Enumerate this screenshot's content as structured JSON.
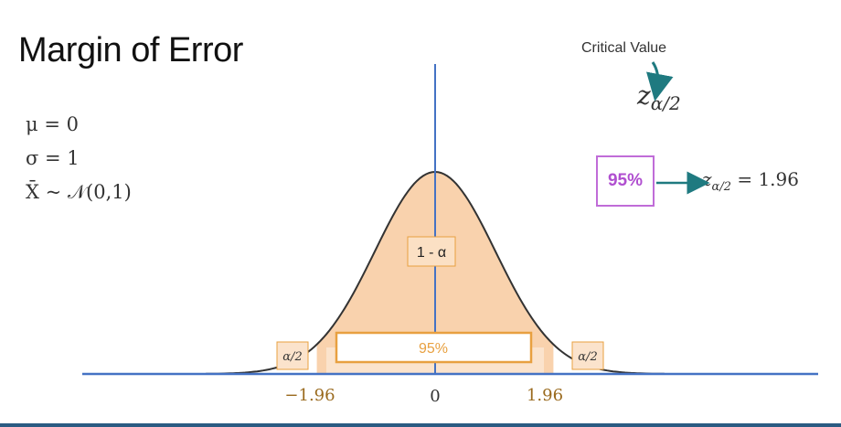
{
  "title": "Margin of Error",
  "params": {
    "mu": "μ = 0",
    "sigma": "σ = 1",
    "dist": "X̄ ~ 𝒩(0,1)"
  },
  "critical": {
    "label": "Critical Value",
    "symbol_main": "z",
    "symbol_sub": "α/2"
  },
  "confidence": {
    "box_label": "95%",
    "result_z": "z",
    "result_sub": "α/2",
    "result_value": " = 1.96"
  },
  "curve": {
    "center_label": "1 - α",
    "interval_label": "95%",
    "tail_left_label": "α/2",
    "tail_right_label": "α/2"
  },
  "axis": {
    "ticks": [
      "−1.96",
      "0",
      "1.96"
    ]
  },
  "colors": {
    "axis_blue": "#4472c4",
    "fill_orange": "#f9d2ad",
    "box_orange": "#e8a040",
    "label_brown": "#9a6a1e",
    "purple": "#c06cd8",
    "teal_arrow": "#1f7a80"
  }
}
